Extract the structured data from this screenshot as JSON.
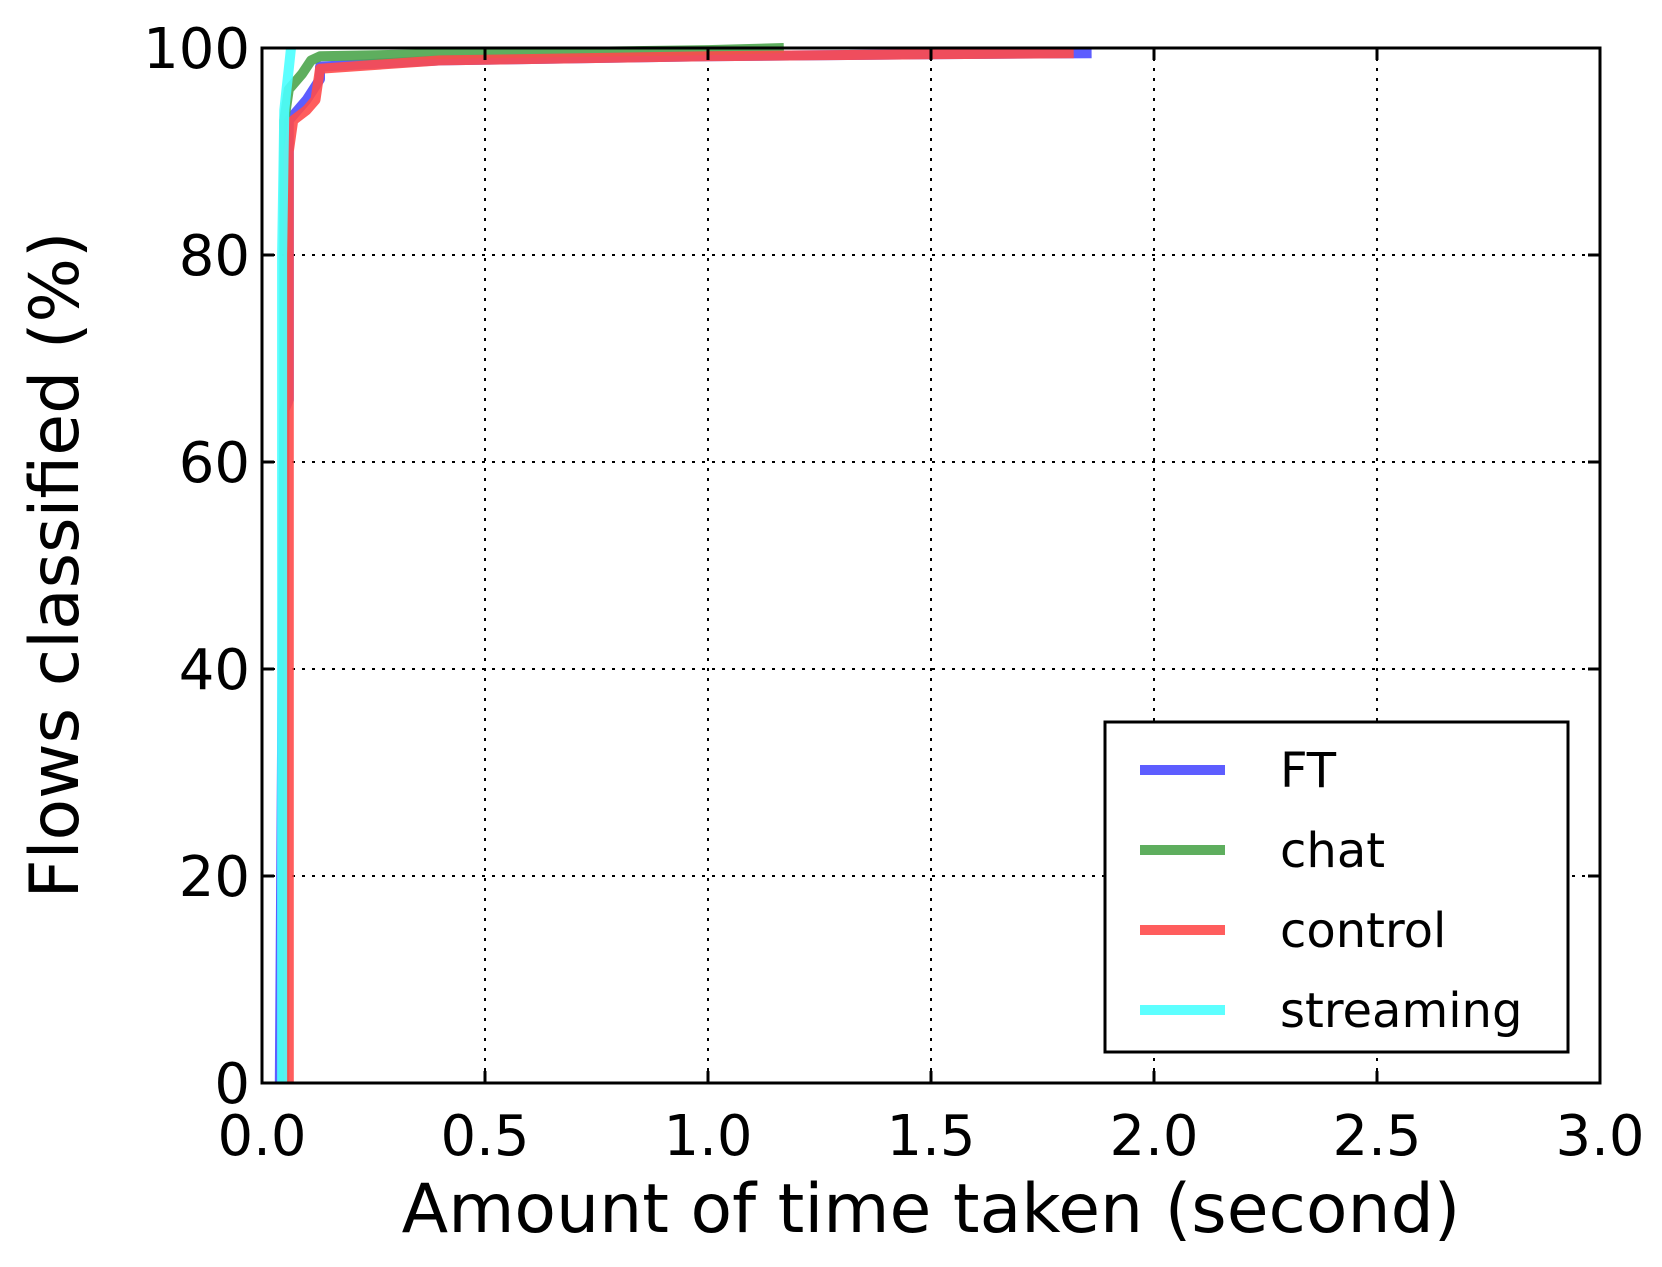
{
  "chart_data": {
    "type": "line",
    "title": "",
    "xlabel": "Amount of time taken (second)",
    "ylabel": "Flows classified (%)",
    "xlim": [
      0.0,
      3.0
    ],
    "ylim": [
      0,
      100
    ],
    "xticks": [
      "0.0",
      "0.5",
      "1.0",
      "1.5",
      "2.0",
      "2.5",
      "3.0"
    ],
    "yticks": [
      "0",
      "20",
      "40",
      "60",
      "80",
      "100"
    ],
    "xtick_values": [
      0.0,
      0.5,
      1.0,
      1.5,
      2.0,
      2.5,
      3.0
    ],
    "ytick_values": [
      0,
      20,
      40,
      60,
      80,
      100
    ],
    "grid": true,
    "legend_position": "lower-right",
    "series": [
      {
        "name": "FT",
        "color": "#4b4bff",
        "points": [
          [
            0.04,
            0
          ],
          [
            0.05,
            65
          ],
          [
            0.06,
            66
          ],
          [
            0.06,
            93
          ],
          [
            0.08,
            94
          ],
          [
            0.1,
            95
          ],
          [
            0.13,
            97
          ],
          [
            0.13,
            98.2
          ],
          [
            0.4,
            98.8
          ],
          [
            1.0,
            99.2
          ],
          [
            1.5,
            99.4
          ],
          [
            1.86,
            99.5
          ]
        ]
      },
      {
        "name": "chat",
        "color": "#4ca54c",
        "points": [
          [
            0.05,
            0
          ],
          [
            0.05,
            93
          ],
          [
            0.06,
            96
          ],
          [
            0.09,
            97.5
          ],
          [
            0.11,
            98.8
          ],
          [
            0.13,
            99.2
          ],
          [
            0.5,
            99.5
          ],
          [
            1.0,
            99.8
          ],
          [
            1.17,
            100
          ]
        ]
      },
      {
        "name": "control",
        "color": "#ff4b4b",
        "points": [
          [
            0.06,
            0
          ],
          [
            0.06,
            90
          ],
          [
            0.07,
            93
          ],
          [
            0.1,
            94
          ],
          [
            0.12,
            95
          ],
          [
            0.13,
            98
          ],
          [
            0.4,
            98.8
          ],
          [
            1.0,
            99.2
          ],
          [
            1.5,
            99.4
          ],
          [
            1.82,
            99.5
          ]
        ]
      },
      {
        "name": "streaming",
        "color": "#4bffff",
        "points": [
          [
            0.045,
            0
          ],
          [
            0.045,
            80
          ],
          [
            0.05,
            94
          ],
          [
            0.055,
            96
          ],
          [
            0.06,
            98
          ],
          [
            0.065,
            100
          ]
        ]
      }
    ]
  }
}
